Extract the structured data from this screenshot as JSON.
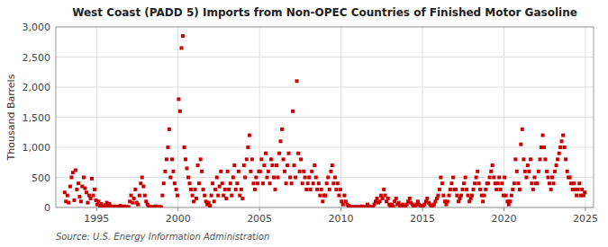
{
  "chart_data": {
    "type": "scatter",
    "title": "West Coast (PADD 5) Imports from Non-OPEC Countries of Finished Motor Gasoline",
    "ylabel": "Thousand Barrels",
    "source": "Source: U.S. Energy Information Administration",
    "color": "#cc0000",
    "marker": "square",
    "grid": true,
    "xlim": [
      1992.5,
      2025.5
    ],
    "ylim": [
      0,
      3000
    ],
    "xticks": [
      1995,
      2000,
      2005,
      2010,
      2015,
      2020,
      2025
    ],
    "yticks": [
      0,
      500,
      {
        "value": 1000,
        "label": "1,000"
      },
      {
        "value": 1500,
        "label": "1,500"
      },
      {
        "value": 2000,
        "label": "2,000"
      },
      {
        "value": 2500,
        "label": "2,500"
      },
      {
        "value": 3000,
        "label": "3,000"
      }
    ],
    "x": [
      1993.04,
      1993.12,
      1993.21,
      1993.29,
      1993.38,
      1993.46,
      1993.54,
      1993.63,
      1993.71,
      1993.79,
      1993.88,
      1993.96,
      1994.04,
      1994.12,
      1994.21,
      1994.29,
      1994.38,
      1994.46,
      1994.54,
      1994.63,
      1994.71,
      1994.79,
      1994.88,
      1994.96,
      1995.04,
      1995.12,
      1995.21,
      1995.29,
      1995.38,
      1995.46,
      1995.54,
      1995.63,
      1995.71,
      1995.79,
      1995.88,
      1995.96,
      1996.04,
      1996.12,
      1996.21,
      1996.29,
      1996.38,
      1996.46,
      1996.54,
      1996.63,
      1996.71,
      1996.79,
      1996.88,
      1996.96,
      1997.04,
      1997.12,
      1997.21,
      1997.29,
      1997.38,
      1997.46,
      1997.54,
      1997.63,
      1997.71,
      1997.79,
      1997.88,
      1997.96,
      1998.04,
      1998.12,
      1998.21,
      1998.29,
      1998.38,
      1998.46,
      1998.54,
      1998.63,
      1998.71,
      1998.79,
      1998.88,
      1998.96,
      1999.04,
      1999.12,
      1999.21,
      1999.29,
      1999.38,
      1999.46,
      1999.54,
      1999.63,
      1999.71,
      1999.79,
      1999.88,
      1999.96,
      2000.04,
      2000.12,
      2000.21,
      2000.29,
      2000.38,
      2000.46,
      2000.54,
      2000.63,
      2000.71,
      2000.79,
      2000.88,
      2000.96,
      2001.04,
      2001.12,
      2001.21,
      2001.29,
      2001.38,
      2001.46,
      2001.54,
      2001.63,
      2001.71,
      2001.79,
      2001.88,
      2001.96,
      2002.04,
      2002.12,
      2002.21,
      2002.29,
      2002.38,
      2002.46,
      2002.54,
      2002.63,
      2002.71,
      2002.79,
      2002.88,
      2002.96,
      2003.04,
      2003.12,
      2003.21,
      2003.29,
      2003.38,
      2003.46,
      2003.54,
      2003.63,
      2003.71,
      2003.79,
      2003.88,
      2003.96,
      2004.04,
      2004.12,
      2004.21,
      2004.29,
      2004.38,
      2004.46,
      2004.54,
      2004.63,
      2004.71,
      2004.79,
      2004.88,
      2004.96,
      2005.04,
      2005.12,
      2005.21,
      2005.29,
      2005.38,
      2005.46,
      2005.54,
      2005.63,
      2005.71,
      2005.79,
      2005.88,
      2005.96,
      2006.04,
      2006.12,
      2006.21,
      2006.29,
      2006.38,
      2006.46,
      2006.54,
      2006.63,
      2006.71,
      2006.79,
      2006.88,
      2006.96,
      2007.04,
      2007.12,
      2007.21,
      2007.29,
      2007.38,
      2007.46,
      2007.54,
      2007.63,
      2007.71,
      2007.79,
      2007.88,
      2007.96,
      2008.04,
      2008.12,
      2008.21,
      2008.29,
      2008.38,
      2008.46,
      2008.54,
      2008.63,
      2008.71,
      2008.79,
      2008.88,
      2008.96,
      2009.04,
      2009.12,
      2009.21,
      2009.29,
      2009.38,
      2009.46,
      2009.54,
      2009.63,
      2009.71,
      2009.79,
      2009.88,
      2009.96,
      2010.04,
      2010.12,
      2010.21,
      2010.29,
      2010.38,
      2010.46,
      2010.54,
      2010.63,
      2010.71,
      2010.79,
      2010.88,
      2010.96,
      2011.04,
      2011.12,
      2011.21,
      2011.29,
      2011.38,
      2011.46,
      2011.54,
      2011.63,
      2011.71,
      2011.79,
      2011.88,
      2011.96,
      2012.04,
      2012.12,
      2012.21,
      2012.29,
      2012.38,
      2012.46,
      2012.54,
      2012.63,
      2012.71,
      2012.79,
      2012.88,
      2012.96,
      2013.04,
      2013.12,
      2013.21,
      2013.29,
      2013.38,
      2013.46,
      2013.54,
      2013.63,
      2013.71,
      2013.79,
      2013.88,
      2013.96,
      2014.04,
      2014.12,
      2014.21,
      2014.29,
      2014.38,
      2014.46,
      2014.54,
      2014.63,
      2014.71,
      2014.79,
      2014.88,
      2014.96,
      2015.04,
      2015.12,
      2015.21,
      2015.29,
      2015.38,
      2015.46,
      2015.54,
      2015.63,
      2015.71,
      2015.79,
      2015.88,
      2015.96,
      2016.04,
      2016.12,
      2016.21,
      2016.29,
      2016.38,
      2016.46,
      2016.54,
      2016.63,
      2016.71,
      2016.79,
      2016.88,
      2016.96,
      2017.04,
      2017.12,
      2017.21,
      2017.29,
      2017.38,
      2017.46,
      2017.54,
      2017.63,
      2017.71,
      2017.79,
      2017.88,
      2017.96,
      2018.04,
      2018.12,
      2018.21,
      2018.29,
      2018.38,
      2018.46,
      2018.54,
      2018.63,
      2018.71,
      2018.79,
      2018.88,
      2018.96,
      2019.04,
      2019.12,
      2019.21,
      2019.29,
      2019.38,
      2019.46,
      2019.54,
      2019.63,
      2019.71,
      2019.79,
      2019.88,
      2019.96,
      2020.04,
      2020.12,
      2020.21,
      2020.29,
      2020.38,
      2020.46,
      2020.54,
      2020.63,
      2020.71,
      2020.79,
      2020.88,
      2020.96,
      2021.04,
      2021.12,
      2021.21,
      2021.29,
      2021.38,
      2021.46,
      2021.54,
      2021.63,
      2021.71,
      2021.79,
      2021.88,
      2021.96,
      2022.04,
      2022.12,
      2022.21,
      2022.29,
      2022.38,
      2022.46,
      2022.54,
      2022.63,
      2022.71,
      2022.79,
      2022.88,
      2022.96,
      2023.04,
      2023.12,
      2023.21,
      2023.29,
      2023.38,
      2023.46,
      2023.54,
      2023.63,
      2023.71,
      2023.79,
      2023.88,
      2023.96,
      2024.04,
      2024.12,
      2024.21,
      2024.29,
      2024.38,
      2024.46,
      2024.54,
      2024.63,
      2024.71,
      2024.79,
      2024.88,
      2024.96
    ],
    "values": [
      250,
      100,
      200,
      80,
      350,
      500,
      580,
      120,
      620,
      300,
      400,
      180,
      100,
      350,
      500,
      320,
      250,
      80,
      200,
      150,
      480,
      200,
      300,
      120,
      50,
      100,
      30,
      60,
      20,
      10,
      40,
      80,
      30,
      60,
      20,
      10,
      5,
      20,
      10,
      5,
      15,
      30,
      10,
      5,
      20,
      10,
      5,
      10,
      100,
      200,
      80,
      150,
      300,
      80,
      50,
      200,
      400,
      500,
      350,
      200,
      100,
      50,
      20,
      10,
      5,
      10,
      5,
      20,
      10,
      5,
      10,
      5,
      200,
      400,
      600,
      800,
      1000,
      1300,
      500,
      800,
      600,
      400,
      300,
      200,
      1800,
      1600,
      2650,
      2850,
      1000,
      800,
      650,
      500,
      400,
      300,
      200,
      100,
      300,
      150,
      700,
      400,
      800,
      600,
      300,
      200,
      100,
      50,
      80,
      30,
      200,
      400,
      100,
      300,
      500,
      200,
      350,
      600,
      400,
      200,
      300,
      150,
      600,
      300,
      400,
      200,
      500,
      700,
      300,
      400,
      600,
      200,
      300,
      150,
      700,
      500,
      800,
      1000,
      1200,
      600,
      800,
      400,
      300,
      500,
      400,
      600,
      600,
      800,
      400,
      700,
      900,
      500,
      600,
      400,
      800,
      700,
      500,
      300,
      700,
      500,
      900,
      1100,
      1300,
      800,
      600,
      400,
      700,
      900,
      500,
      400,
      1600,
      700,
      500,
      2100,
      900,
      600,
      800,
      400,
      600,
      500,
      300,
      400,
      500,
      300,
      600,
      400,
      700,
      500,
      300,
      400,
      200,
      300,
      100,
      200,
      200,
      400,
      500,
      300,
      600,
      700,
      400,
      500,
      300,
      400,
      200,
      300,
      100,
      50,
      200,
      100,
      50,
      30,
      20,
      10,
      5,
      10,
      5,
      10,
      5,
      10,
      5,
      20,
      10,
      5,
      10,
      50,
      20,
      10,
      5,
      10,
      50,
      100,
      150,
      80,
      100,
      200,
      150,
      300,
      200,
      100,
      150,
      50,
      30,
      50,
      20,
      100,
      150,
      50,
      80,
      30,
      20,
      50,
      10,
      20,
      50,
      100,
      150,
      80,
      50,
      30,
      20,
      50,
      100,
      50,
      30,
      10,
      20,
      50,
      100,
      150,
      80,
      50,
      30,
      20,
      50,
      100,
      150,
      200,
      300,
      500,
      400,
      200,
      100,
      50,
      100,
      200,
      300,
      400,
      500,
      300,
      300,
      200,
      100,
      150,
      200,
      300,
      400,
      500,
      300,
      200,
      100,
      150,
      200,
      300,
      400,
      500,
      600,
      400,
      300,
      200,
      100,
      200,
      300,
      400,
      400,
      500,
      600,
      700,
      500,
      400,
      300,
      400,
      500,
      300,
      400,
      200,
      500,
      200,
      100,
      50,
      100,
      200,
      300,
      400,
      800,
      600,
      400,
      300,
      1050,
      1300,
      800,
      600,
      500,
      700,
      600,
      800,
      400,
      300,
      500,
      400,
      400,
      600,
      800,
      1000,
      1200,
      1000,
      800,
      600,
      500,
      400,
      300,
      500,
      400,
      600,
      700,
      800,
      900,
      1000,
      1100,
      1200,
      1000,
      800,
      600,
      500,
      500,
      400,
      300,
      400,
      300,
      200,
      300,
      400,
      200,
      300,
      200,
      250
    ]
  }
}
